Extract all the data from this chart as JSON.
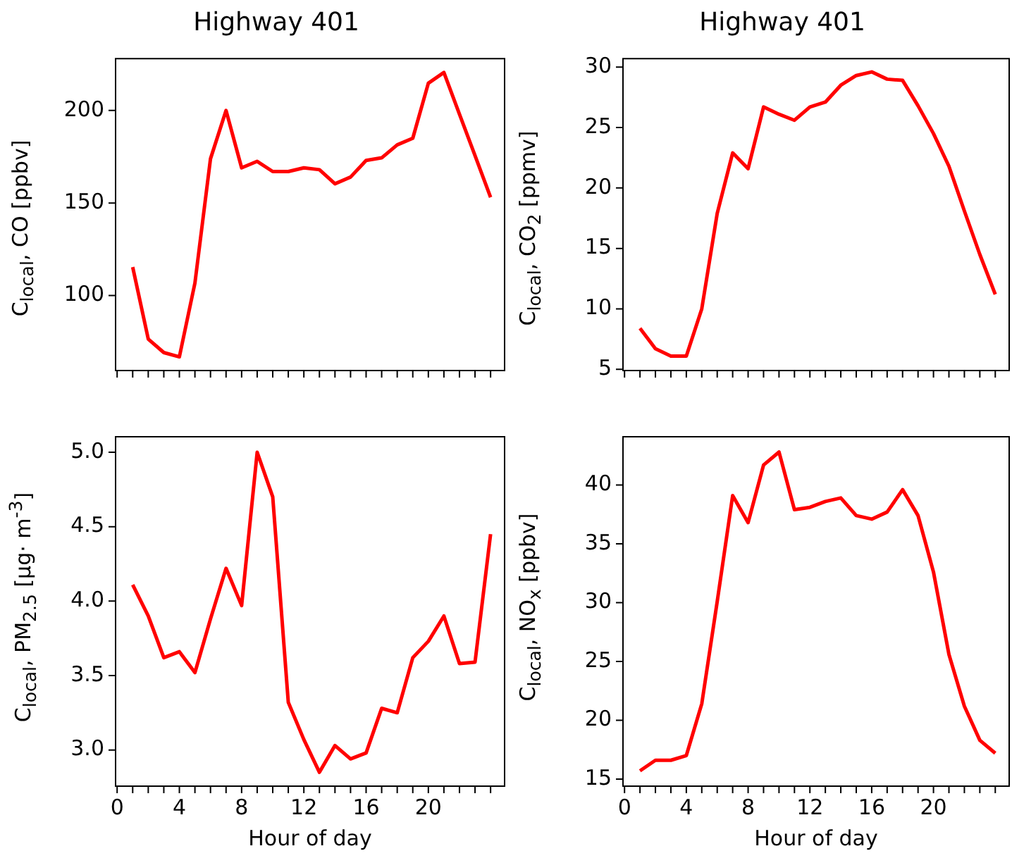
{
  "chart_data": [
    {
      "type": "line",
      "title": "Highway 401",
      "ylabel": "C$_{local}$, CO [ppbv]",
      "x": [
        1,
        2,
        3,
        4,
        5,
        6,
        7,
        8,
        9,
        10,
        11,
        12,
        13,
        14,
        15,
        16,
        17,
        18,
        19,
        20,
        21,
        22,
        23,
        24
      ],
      "series": [
        {
          "color": "#ff0000",
          "values": [
            115.4,
            76.5,
            69.2,
            66.9,
            106.8,
            173.9,
            200,
            169,
            172.5,
            167,
            167,
            169,
            168,
            160.4,
            164,
            173,
            174.4,
            181.4,
            185,
            214.7,
            220.5,
            198,
            175.6,
            153.1
          ]
        }
      ],
      "xlim": [
        -0.1,
        24.9
      ],
      "xticks": [
        0,
        {
          "value": 1,
          "label": null
        },
        {
          "value": 2,
          "label": null
        },
        {
          "value": 3,
          "label": null
        },
        4,
        {
          "value": 5,
          "label": null
        },
        {
          "value": 6,
          "label": null
        },
        {
          "value": 7,
          "label": null
        },
        8,
        {
          "value": 9,
          "label": null
        },
        {
          "value": 10,
          "label": null
        },
        {
          "value": 11,
          "label": null
        },
        12,
        {
          "value": 13,
          "label": null
        },
        {
          "value": 14,
          "label": null
        },
        {
          "value": 15,
          "label": null
        },
        16,
        {
          "value": 17,
          "label": null
        },
        {
          "value": 18,
          "label": null
        },
        {
          "value": 19,
          "label": null
        },
        20,
        {
          "value": 21,
          "label": null
        },
        {
          "value": 22,
          "label": null
        },
        {
          "value": 23,
          "label": null
        },
        {
          "value": 24,
          "label": null
        }
      ],
      "ylim": [
        59.5,
        228
      ],
      "yticks": [
        100,
        150,
        200
      ],
      "tick_labels": "y",
      "grid": false,
      "legend": false,
      "marker": "none"
    },
    {
      "type": "line",
      "title": "Highway 401",
      "ylabel": "C$_{local}$, CO$_{2}$ [ppmv]",
      "x": [
        1,
        2,
        3,
        4,
        5,
        6,
        7,
        8,
        9,
        10,
        11,
        12,
        13,
        14,
        15,
        16,
        17,
        18,
        19,
        20,
        21,
        22,
        23,
        24
      ],
      "series": [
        {
          "color": "#ff0000",
          "values": [
            8.4,
            6.7,
            6.1,
            6.1,
            10,
            17.9,
            22.9,
            21.6,
            26.7,
            26.1,
            25.6,
            26.7,
            27.1,
            28.5,
            29.3,
            29.6,
            29.0,
            28.9,
            26.8,
            24.5,
            21.8,
            18.1,
            14.5,
            11.2
          ]
        }
      ],
      "xlim": [
        -0.1,
        24.9
      ],
      "xticks": [
        0,
        {
          "value": 1,
          "label": null
        },
        {
          "value": 2,
          "label": null
        },
        {
          "value": 3,
          "label": null
        },
        4,
        {
          "value": 5,
          "label": null
        },
        {
          "value": 6,
          "label": null
        },
        {
          "value": 7,
          "label": null
        },
        8,
        {
          "value": 9,
          "label": null
        },
        {
          "value": 10,
          "label": null
        },
        {
          "value": 11,
          "label": null
        },
        12,
        {
          "value": 13,
          "label": null
        },
        {
          "value": 14,
          "label": null
        },
        {
          "value": 15,
          "label": null
        },
        16,
        {
          "value": 17,
          "label": null
        },
        {
          "value": 18,
          "label": null
        },
        {
          "value": 19,
          "label": null
        },
        20,
        {
          "value": 21,
          "label": null
        },
        {
          "value": 22,
          "label": null
        },
        {
          "value": 23,
          "label": null
        },
        {
          "value": 24,
          "label": null
        }
      ],
      "ylim": [
        4.9,
        30.7
      ],
      "yticks": [
        5,
        10,
        15,
        20,
        25,
        30
      ],
      "tick_labels": "y",
      "grid": false,
      "legend": false,
      "marker": "none"
    },
    {
      "type": "line",
      "xlabel": "Hour of day",
      "ylabel": "C$_{local}$, PM$_{2.5}$ [μg· m$^{-3}$]",
      "x": [
        1,
        2,
        3,
        4,
        5,
        6,
        7,
        8,
        9,
        10,
        11,
        12,
        13,
        14,
        15,
        16,
        17,
        18,
        19,
        20,
        21,
        22,
        23,
        24
      ],
      "series": [
        {
          "color": "#ff0000",
          "values": [
            4.11,
            3.9,
            3.62,
            3.66,
            3.52,
            3.88,
            4.22,
            3.97,
            5.0,
            4.7,
            3.32,
            3.07,
            2.85,
            3.03,
            2.94,
            2.98,
            3.28,
            3.25,
            3.62,
            3.73,
            3.9,
            3.58,
            3.59,
            4.45
          ]
        }
      ],
      "xlim": [
        -0.1,
        24.9
      ],
      "xticks": [
        0,
        {
          "value": 1,
          "label": null
        },
        {
          "value": 2,
          "label": null
        },
        {
          "value": 3,
          "label": null
        },
        4,
        {
          "value": 5,
          "label": null
        },
        {
          "value": 6,
          "label": null
        },
        {
          "value": 7,
          "label": null
        },
        8,
        {
          "value": 9,
          "label": null
        },
        {
          "value": 10,
          "label": null
        },
        {
          "value": 11,
          "label": null
        },
        12,
        {
          "value": 13,
          "label": null
        },
        {
          "value": 14,
          "label": null
        },
        {
          "value": 15,
          "label": null
        },
        16,
        {
          "value": 17,
          "label": null
        },
        {
          "value": 18,
          "label": null
        },
        {
          "value": 19,
          "label": null
        },
        20,
        {
          "value": 21,
          "label": null
        },
        {
          "value": 22,
          "label": null
        },
        {
          "value": 23,
          "label": null
        },
        {
          "value": 24,
          "label": null
        }
      ],
      "ylim": [
        2.757,
        5.104
      ],
      "yticks": [
        {
          "value": 3,
          "label": "3.0"
        },
        {
          "value": 3.5,
          "label": "3.5"
        },
        {
          "value": 4,
          "label": "4.0"
        },
        {
          "value": 4.5,
          "label": "4.5"
        },
        {
          "value": 5,
          "label": "5.0"
        }
      ],
      "grid": false,
      "legend": false,
      "marker": "none"
    },
    {
      "type": "line",
      "xlabel": "Hour of day",
      "ylabel": "C$_{local}$, NO$_{x}$ [ppbv]",
      "x": [
        1,
        2,
        3,
        4,
        5,
        6,
        7,
        8,
        9,
        10,
        11,
        12,
        13,
        14,
        15,
        16,
        17,
        18,
        19,
        20,
        21,
        22,
        23,
        24
      ],
      "series": [
        {
          "color": "#ff0000",
          "values": [
            15.7,
            16.6,
            16.6,
            17.0,
            21.4,
            30.1,
            39.1,
            36.8,
            41.7,
            42.8,
            37.9,
            38.1,
            38.6,
            38.9,
            37.4,
            37.1,
            37.7,
            39.6,
            37.4,
            32.6,
            25.6,
            21.2,
            18.3,
            17.2
          ]
        }
      ],
      "xlim": [
        -0.1,
        24.9
      ],
      "xticks": [
        0,
        {
          "value": 1,
          "label": null
        },
        {
          "value": 2,
          "label": null
        },
        {
          "value": 3,
          "label": null
        },
        4,
        {
          "value": 5,
          "label": null
        },
        {
          "value": 6,
          "label": null
        },
        {
          "value": 7,
          "label": null
        },
        8,
        {
          "value": 9,
          "label": null
        },
        {
          "value": 10,
          "label": null
        },
        {
          "value": 11,
          "label": null
        },
        12,
        {
          "value": 13,
          "label": null
        },
        {
          "value": 14,
          "label": null
        },
        {
          "value": 15,
          "label": null
        },
        16,
        {
          "value": 17,
          "label": null
        },
        {
          "value": 18,
          "label": null
        },
        {
          "value": 19,
          "label": null
        },
        20,
        {
          "value": 21,
          "label": null
        },
        {
          "value": 22,
          "label": null
        },
        {
          "value": 23,
          "label": null
        },
        {
          "value": 24,
          "label": null
        }
      ],
      "ylim": [
        14.4,
        44.1
      ],
      "yticks": [
        15,
        20,
        25,
        30,
        35,
        40
      ],
      "grid": false,
      "legend": false,
      "marker": "none"
    }
  ]
}
